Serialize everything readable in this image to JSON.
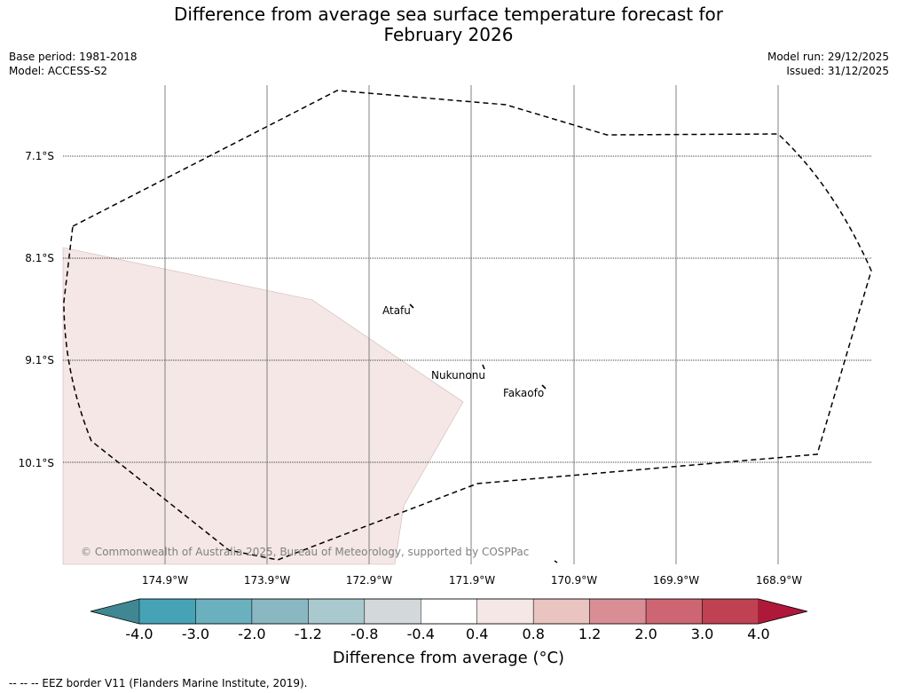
{
  "title": {
    "line1": "Difference from average sea surface temperature forecast for",
    "line2": "February 2026"
  },
  "meta": {
    "base_period": "Base period: 1981-2018",
    "model": "Model: ACCESS-S2",
    "model_run": "Model run: 29/12/2025",
    "issued": "Issued: 31/12/2025"
  },
  "map": {
    "lat_labels": [
      "7.1°S",
      "8.1°S",
      "9.1°S",
      "10.1°S"
    ],
    "lon_labels": [
      "174.9°W",
      "173.9°W",
      "172.9°W",
      "171.9°W",
      "170.9°W",
      "169.9°W",
      "168.9°W"
    ],
    "places": {
      "atafu": "Atafu",
      "nukunonu": "Nukunonu",
      "fakaofo": "Fakaofo"
    },
    "copyright": "© Commonwealth of Australia 2025, Bureau of Meteorology, supported by COSPPac",
    "anomaly_fill_color": "#f4e7e6"
  },
  "colorbar": {
    "ticks": [
      "-4.0",
      "-3.0",
      "-2.0",
      "-1.2",
      "-0.8",
      "-0.4",
      "0.4",
      "0.8",
      "1.2",
      "2.0",
      "3.0",
      "4.0"
    ],
    "colors": [
      "#3f8793",
      "#46a3b6",
      "#6bb0be",
      "#8ab8c2",
      "#a9c9ce",
      "#d3d9da",
      "#ffffff",
      "#f4e7e6",
      "#e9c4c1",
      "#d98e96",
      "#cd6672",
      "#c04152",
      "#b0183a"
    ],
    "title": "Difference from average (°C)"
  },
  "footer": "-- -- -- EEZ border V11 (Flanders Marine Institute, 2019)."
}
